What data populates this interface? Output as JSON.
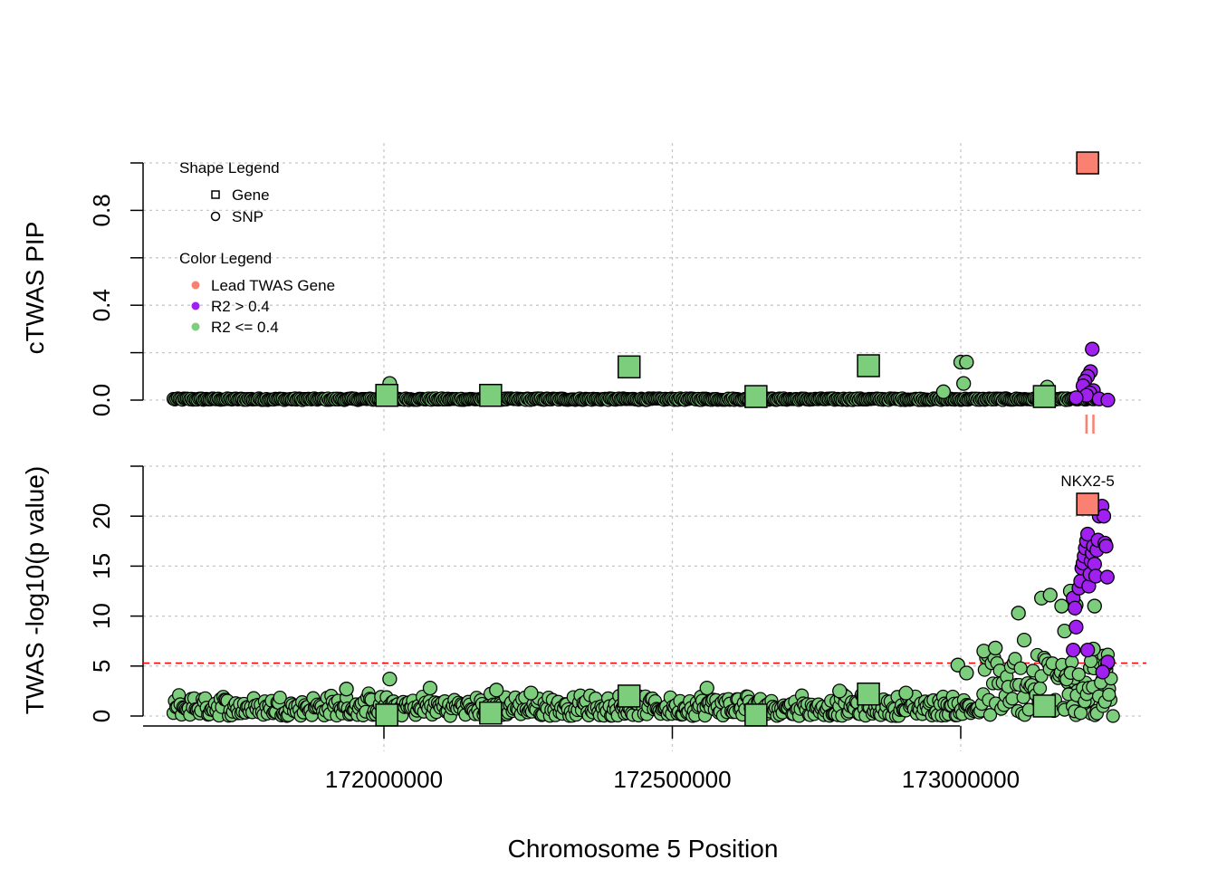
{
  "figure": {
    "xlabel": "Chromosome 5 Position",
    "colors": {
      "lead_twas_gene": "#fa8072",
      "r2_gt_04": "#a020f0",
      "r2_le_04": "#7ccd7c",
      "threshold_line": "#ff0000",
      "highlight_marker": "#fa8072"
    }
  },
  "chart_data": [
    {
      "type": "scatter",
      "panel": "top",
      "ylabel": "cTWAS PIP",
      "xlim": [
        171580000,
        173330000
      ],
      "ylim": [
        0,
        1.05
      ],
      "x_ticks": [
        172000000,
        172500000,
        173000000
      ],
      "y_ticks": [
        0,
        0.2,
        0.4,
        0.6,
        0.8,
        1.0
      ],
      "y_tick_labels": [
        "0.0",
        "",
        "0.4",
        "",
        "0.8",
        ""
      ],
      "legend": {
        "shape_title": "Shape Legend",
        "shape_items": [
          {
            "label": "Gene",
            "shape": "square"
          },
          {
            "label": "SNP",
            "shape": "circle"
          }
        ],
        "color_title": "Color Legend",
        "color_items": [
          {
            "label": "Lead TWAS Gene",
            "color": "#fa8072"
          },
          {
            "label": "R2 > 0.4",
            "color": "#a020f0"
          },
          {
            "label": "R2 <= 0.4",
            "color": "#7ccd7c"
          }
        ],
        "placement": "top-left"
      },
      "genes": [
        {
          "x": 172005000,
          "y": 0.02,
          "group": "low"
        },
        {
          "x": 172185000,
          "y": 0.02,
          "group": "low"
        },
        {
          "x": 172425000,
          "y": 0.14,
          "group": "low"
        },
        {
          "x": 172645000,
          "y": 0.015,
          "group": "low"
        },
        {
          "x": 172840000,
          "y": 0.145,
          "group": "low"
        },
        {
          "x": 173145000,
          "y": 0.015,
          "group": "low"
        },
        {
          "x": 173220000,
          "y": 1.0,
          "group": "lead"
        }
      ],
      "snps_notable": [
        {
          "x": 172010000,
          "y": 0.07,
          "group": "low"
        },
        {
          "x": 172970000,
          "y": 0.035,
          "group": "low"
        },
        {
          "x": 173000000,
          "y": 0.16,
          "group": "low"
        },
        {
          "x": 173010000,
          "y": 0.16,
          "group": "low"
        },
        {
          "x": 173005000,
          "y": 0.07,
          "group": "low"
        },
        {
          "x": 173150000,
          "y": 0.055,
          "group": "low"
        },
        {
          "x": 173228000,
          "y": 0.215,
          "group": "high"
        },
        {
          "x": 173225000,
          "y": 0.12,
          "group": "high"
        },
        {
          "x": 173220000,
          "y": 0.1,
          "group": "high"
        },
        {
          "x": 173215000,
          "y": 0.08,
          "group": "high"
        },
        {
          "x": 173212000,
          "y": 0.06,
          "group": "high"
        },
        {
          "x": 173230000,
          "y": 0.04,
          "group": "high"
        },
        {
          "x": 173224000,
          "y": 0.03,
          "group": "high"
        },
        {
          "x": 173218000,
          "y": 0.02,
          "group": "high"
        },
        {
          "x": 173200000,
          "y": 0.01,
          "group": "high"
        },
        {
          "x": 173240000,
          "y": 0.005,
          "group": "high"
        },
        {
          "x": 173255000,
          "y": 0.0,
          "group": "high"
        }
      ],
      "highlight_marks": [
        173218000,
        173230000
      ]
    },
    {
      "type": "scatter",
      "panel": "bottom",
      "ylabel": "TWAS -log10(p value)",
      "xlim": [
        171580000,
        173330000
      ],
      "ylim": [
        0,
        25
      ],
      "x_ticks": [
        172000000,
        172500000,
        173000000
      ],
      "x_tick_labels": [
        "172000000",
        "172500000",
        "173000000"
      ],
      "y_ticks": [
        0,
        5,
        10,
        15,
        20,
        25
      ],
      "y_tick_labels": [
        "0",
        "5",
        "10",
        "15",
        "20",
        ""
      ],
      "threshold": 5.3,
      "gene_label": "NKX2-5",
      "genes": [
        {
          "x": 172005000,
          "y": 0.1,
          "group": "low"
        },
        {
          "x": 172185000,
          "y": 0.3,
          "group": "low"
        },
        {
          "x": 172425000,
          "y": 2.0,
          "group": "low"
        },
        {
          "x": 172645000,
          "y": 0.1,
          "group": "low"
        },
        {
          "x": 172840000,
          "y": 2.2,
          "group": "low"
        },
        {
          "x": 173145000,
          "y": 1.0,
          "group": "low"
        },
        {
          "x": 173220000,
          "y": 21.2,
          "group": "lead"
        }
      ],
      "snps_notable": [
        {
          "x": 171935000,
          "y": 2.7,
          "group": "low"
        },
        {
          "x": 172010000,
          "y": 3.7,
          "group": "low"
        },
        {
          "x": 172080000,
          "y": 2.8,
          "group": "low"
        },
        {
          "x": 172195000,
          "y": 2.6,
          "group": "low"
        },
        {
          "x": 172255000,
          "y": 2.3,
          "group": "low"
        },
        {
          "x": 172560000,
          "y": 2.8,
          "group": "low"
        },
        {
          "x": 172790000,
          "y": 2.5,
          "group": "low"
        },
        {
          "x": 172905000,
          "y": 2.3,
          "group": "low"
        },
        {
          "x": 172995000,
          "y": 5.1,
          "group": "low"
        },
        {
          "x": 173010000,
          "y": 4.3,
          "group": "low"
        },
        {
          "x": 173040000,
          "y": 6.5,
          "group": "low"
        },
        {
          "x": 173060000,
          "y": 6.8,
          "group": "low"
        },
        {
          "x": 173100000,
          "y": 10.3,
          "group": "low"
        },
        {
          "x": 173110000,
          "y": 7.6,
          "group": "low"
        },
        {
          "x": 173140000,
          "y": 11.8,
          "group": "low"
        },
        {
          "x": 173155000,
          "y": 12.1,
          "group": "low"
        },
        {
          "x": 173175000,
          "y": 11.0,
          "group": "low"
        },
        {
          "x": 173180000,
          "y": 8.5,
          "group": "low"
        },
        {
          "x": 173190000,
          "y": 12.5,
          "group": "low"
        },
        {
          "x": 173200000,
          "y": 11.1,
          "group": "low"
        },
        {
          "x": 173230000,
          "y": 6.7,
          "group": "low"
        },
        {
          "x": 173232000,
          "y": 11.0,
          "group": "low"
        },
        {
          "x": 173195000,
          "y": 11.8,
          "group": "high"
        },
        {
          "x": 173198000,
          "y": 10.8,
          "group": "high"
        },
        {
          "x": 173200000,
          "y": 8.9,
          "group": "high"
        },
        {
          "x": 173195000,
          "y": 6.6,
          "group": "high"
        },
        {
          "x": 173220000,
          "y": 6.6,
          "group": "high"
        },
        {
          "x": 173205000,
          "y": 12.8,
          "group": "high"
        },
        {
          "x": 173208000,
          "y": 13.5,
          "group": "high"
        },
        {
          "x": 173210000,
          "y": 14.8,
          "group": "high"
        },
        {
          "x": 173212000,
          "y": 15.3,
          "group": "high"
        },
        {
          "x": 173214000,
          "y": 16.0,
          "group": "high"
        },
        {
          "x": 173216000,
          "y": 16.8,
          "group": "high"
        },
        {
          "x": 173218000,
          "y": 17.5,
          "group": "high"
        },
        {
          "x": 173220000,
          "y": 18.2,
          "group": "high"
        },
        {
          "x": 173222000,
          "y": 13.0,
          "group": "high"
        },
        {
          "x": 173224000,
          "y": 14.2,
          "group": "high"
        },
        {
          "x": 173226000,
          "y": 15.5,
          "group": "high"
        },
        {
          "x": 173228000,
          "y": 16.3,
          "group": "high"
        },
        {
          "x": 173230000,
          "y": 17.0,
          "group": "high"
        },
        {
          "x": 173232000,
          "y": 15.2,
          "group": "high"
        },
        {
          "x": 173234000,
          "y": 14.0,
          "group": "high"
        },
        {
          "x": 173236000,
          "y": 16.6,
          "group": "high"
        },
        {
          "x": 173238000,
          "y": 17.6,
          "group": "high"
        },
        {
          "x": 173240000,
          "y": 20.0,
          "group": "high"
        },
        {
          "x": 173242000,
          "y": 20.8,
          "group": "high"
        },
        {
          "x": 173245000,
          "y": 21.0,
          "group": "high"
        },
        {
          "x": 173248000,
          "y": 20.0,
          "group": "high"
        },
        {
          "x": 173250000,
          "y": 17.3,
          "group": "high"
        },
        {
          "x": 173252000,
          "y": 17.0,
          "group": "high"
        },
        {
          "x": 173254000,
          "y": 13.9,
          "group": "high"
        },
        {
          "x": 173255000,
          "y": 5.4,
          "group": "high"
        },
        {
          "x": 173246000,
          "y": 4.4,
          "group": "high"
        }
      ]
    }
  ]
}
